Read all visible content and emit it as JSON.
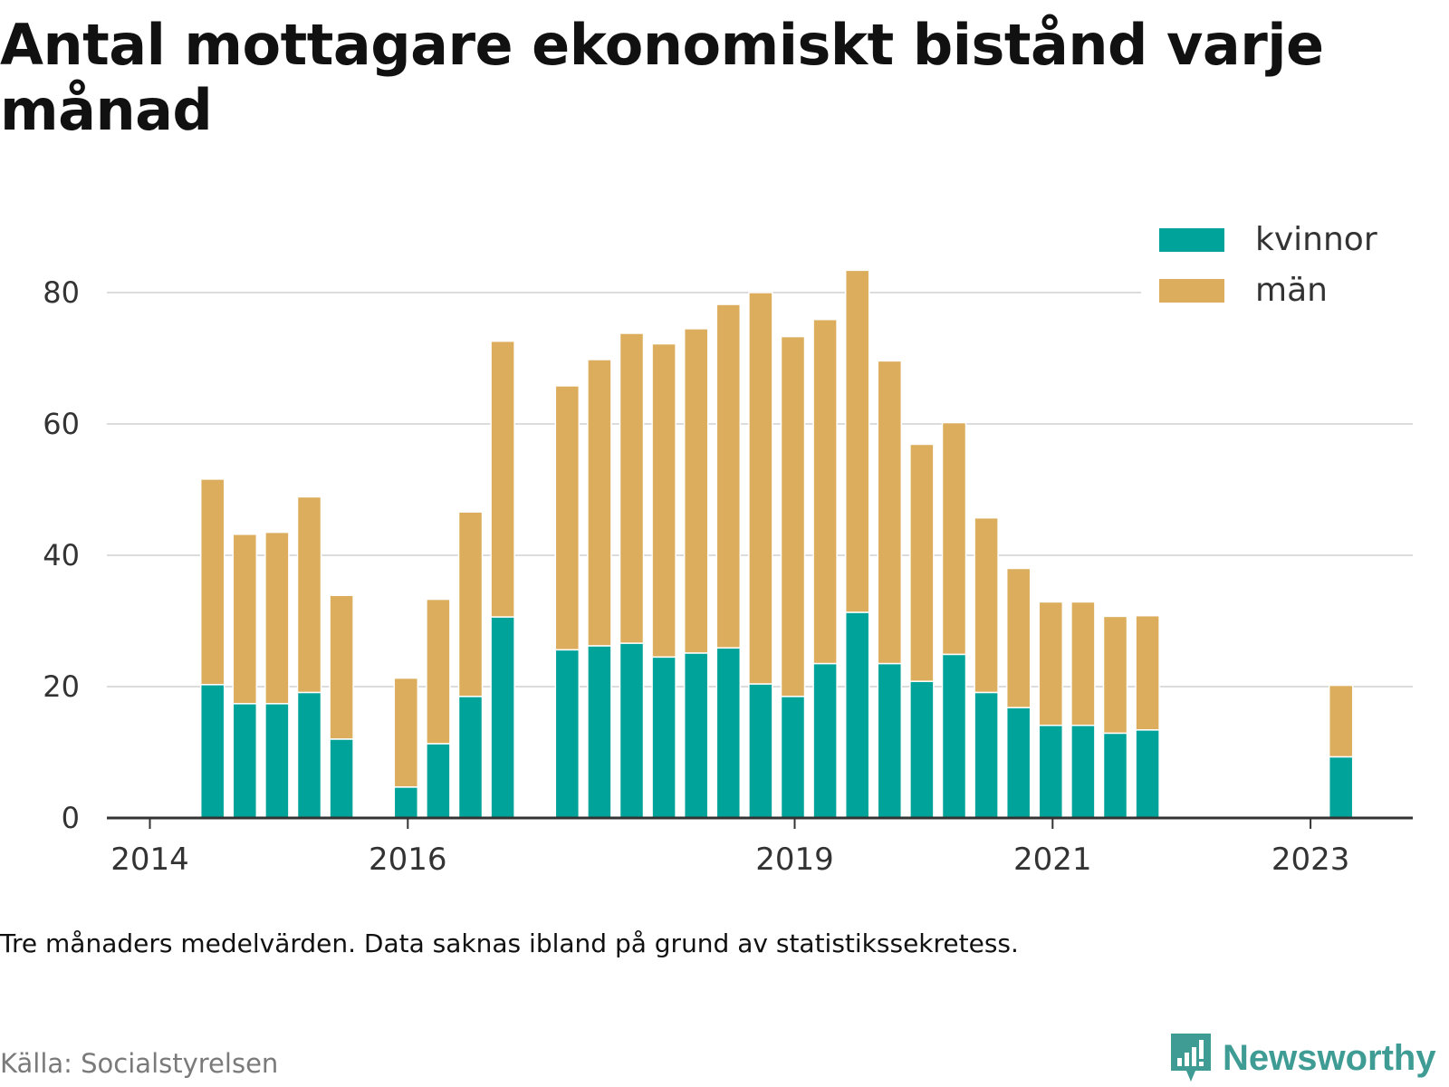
{
  "title": "Antal mottagare ekonomiskt bistånd varje månad",
  "note": "Tre månaders medelvärden. Data saknas ibland på grund av statistikssekretess.",
  "source": "Källa: Socialstyrelsen",
  "brand": "Newsworthy",
  "colors": {
    "kvinnor": "#00a399",
    "man": "#dbad5c",
    "grid": "#dcdcdc",
    "axis": "#333333",
    "text": "#333333"
  },
  "chart_data": {
    "type": "bar",
    "stacked": true,
    "x_tick_labels": [
      "2014",
      "2016",
      "2019",
      "2021",
      "2023"
    ],
    "y_tick_labels": [
      "0",
      "20",
      "40",
      "60",
      "80"
    ],
    "ylim": [
      0,
      90
    ],
    "grid": true,
    "legend_position": "top-right",
    "series": [
      {
        "name": "kvinnor",
        "values": [
          20.3,
          17.4,
          17.4,
          19.1,
          12.0,
          4.7,
          11.3,
          18.5,
          30.6,
          25.6,
          26.2,
          26.6,
          24.5,
          25.1,
          25.9,
          20.4,
          18.5,
          23.5,
          31.3,
          23.5,
          20.8,
          24.9,
          19.1,
          16.8,
          14.1,
          14.1,
          12.9,
          13.4,
          9.3
        ]
      },
      {
        "name": "män",
        "values": [
          31.3,
          25.8,
          26.1,
          29.8,
          21.9,
          16.6,
          22.0,
          28.1,
          42.0,
          40.2,
          43.6,
          47.2,
          47.7,
          49.4,
          52.3,
          59.6,
          54.8,
          52.4,
          52.1,
          46.1,
          36.1,
          35.3,
          26.6,
          21.2,
          18.8,
          18.8,
          17.8,
          17.4,
          10.9
        ]
      }
    ],
    "quarter_index": [
      2,
      3,
      4,
      5,
      6,
      8,
      9,
      10,
      11,
      13,
      14,
      15,
      16,
      17,
      18,
      19,
      20,
      21,
      22,
      23,
      24,
      25,
      26,
      27,
      28,
      29,
      30,
      31,
      37
    ]
  }
}
